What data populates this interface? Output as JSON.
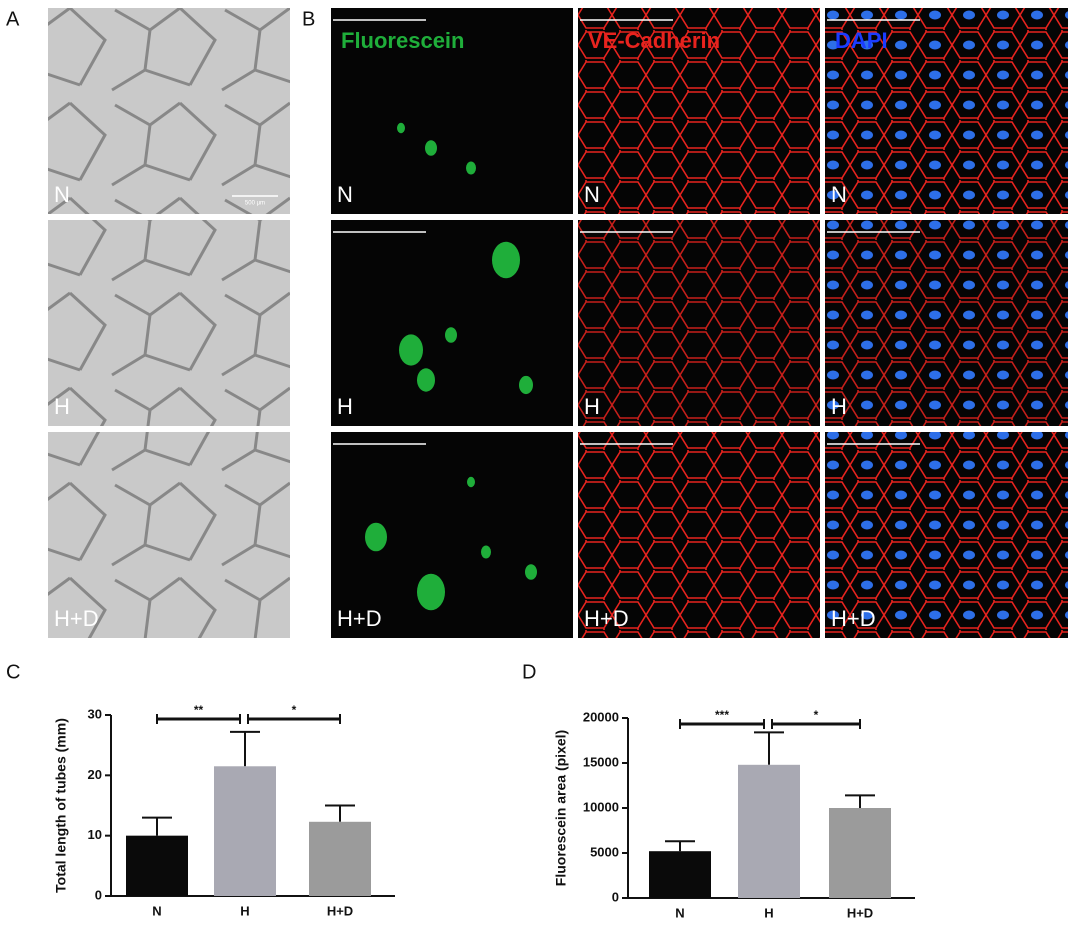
{
  "panels": {
    "a": {
      "letter": "A",
      "rows": [
        "N",
        "H",
        "H+D"
      ],
      "scale": "500 μm"
    },
    "b": {
      "letter": "B",
      "channels": [
        "Fluorescein",
        "VE-Cadherin",
        "DAPI"
      ],
      "rows": [
        "N",
        "H",
        "H+D"
      ]
    },
    "c": {
      "letter": "C"
    },
    "d": {
      "letter": "D"
    }
  },
  "chart_data": [
    {
      "type": "bar",
      "y_label": "Total length of tubes (mm)",
      "categories": [
        "N",
        "H",
        "H+D"
      ],
      "values": [
        10,
        21.5,
        12.3
      ],
      "errors": [
        3,
        5.7,
        2.7
      ],
      "colors": [
        "#0a0a0a",
        "#a9a9b3",
        "#9b9b9b"
      ],
      "ylim": [
        0,
        30
      ],
      "yticks": [
        0,
        10,
        20,
        30
      ],
      "significance": [
        "**",
        "*"
      ]
    },
    {
      "type": "bar",
      "y_label": "Fluorescein  area (pixel)",
      "categories": [
        "N",
        "H",
        "H+D"
      ],
      "values": [
        5200,
        14800,
        10000
      ],
      "errors": [
        1100,
        3600,
        1400
      ],
      "colors": [
        "#0a0a0a",
        "#a9a9b3",
        "#9b9b9b"
      ],
      "ylim": [
        0,
        20000
      ],
      "yticks": [
        0,
        5000,
        10000,
        15000,
        20000
      ],
      "significance": [
        "***",
        "*"
      ]
    }
  ]
}
